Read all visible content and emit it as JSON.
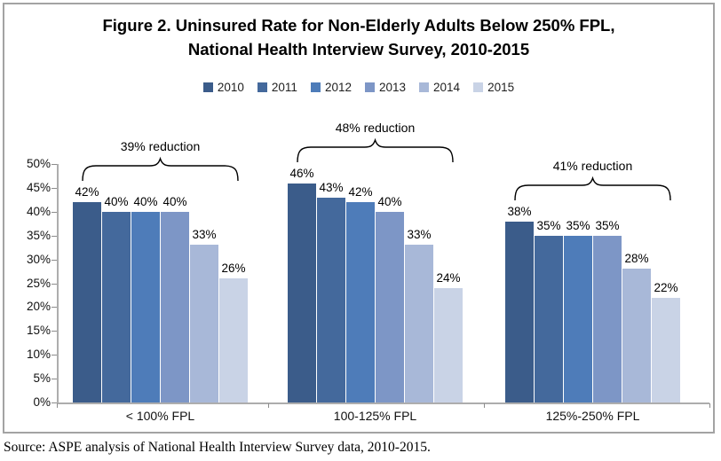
{
  "title": {
    "line1": "Figure 2. Uninsured Rate for Non-Elderly Adults Below 250% FPL,",
    "line2": "National Health Interview Survey, 2010-2015"
  },
  "chart_data": {
    "type": "bar",
    "categories": [
      "< 100% FPL",
      "100-125% FPL",
      "125%-250% FPL"
    ],
    "series": [
      {
        "name": "2010",
        "color": "#3b5c8a",
        "values": [
          42,
          46,
          38
        ]
      },
      {
        "name": "2011",
        "color": "#44699c",
        "values": [
          40,
          43,
          35
        ]
      },
      {
        "name": "2012",
        "color": "#4e7cb9",
        "values": [
          40,
          42,
          35
        ]
      },
      {
        "name": "2013",
        "color": "#7d96c6",
        "values": [
          40,
          40,
          35
        ]
      },
      {
        "name": "2014",
        "color": "#a8b8d8",
        "values": [
          33,
          33,
          28
        ]
      },
      {
        "name": "2015",
        "color": "#c9d3e6",
        "values": [
          26,
          24,
          22
        ]
      }
    ],
    "value_suffix": "%",
    "ylim": [
      0,
      50
    ],
    "ytick_step": 5,
    "ytick_suffix": "%",
    "grid": false,
    "legend_position": "top",
    "annotations": [
      {
        "category": 0,
        "label": "39% reduction"
      },
      {
        "category": 1,
        "label": "48% reduction"
      },
      {
        "category": 2,
        "label": "41% reduction"
      }
    ]
  },
  "source": "Source: ASPE analysis of National Health Interview Survey data, 2010-2015."
}
